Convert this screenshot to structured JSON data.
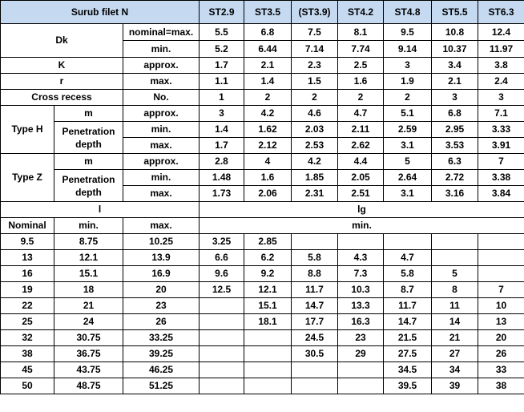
{
  "header": {
    "title": "Surub filet N",
    "sizes": [
      "ST2.9",
      "ST3.5",
      "(ST3.9)",
      "ST4.2",
      "ST4.8",
      "ST5.5",
      "ST6.3"
    ]
  },
  "dims": {
    "dk": {
      "label": "Dk",
      "nominal": {
        "label": "nominal=max.",
        "values": [
          "5.5",
          "6.8",
          "7.5",
          "8.1",
          "9.5",
          "10.8",
          "12.4"
        ]
      },
      "min": {
        "label": "min.",
        "values": [
          "5.2",
          "6.44",
          "7.14",
          "7.74",
          "9.14",
          "10.37",
          "11.97"
        ]
      }
    },
    "k": {
      "label": "K",
      "spec": "approx.",
      "values": [
        "1.7",
        "2.1",
        "2.3",
        "2.5",
        "3",
        "3.4",
        "3.8"
      ]
    },
    "r": {
      "label": "r",
      "spec": "max.",
      "values": [
        "1.1",
        "1.4",
        "1.5",
        "1.6",
        "1.9",
        "2.1",
        "2.4"
      ]
    },
    "cross": {
      "label": "Cross recess",
      "spec": "No.",
      "values": [
        "1",
        "2",
        "2",
        "2",
        "2",
        "3",
        "3"
      ]
    },
    "type_h": {
      "label": "Type H",
      "m": {
        "label": "m",
        "spec": "approx.",
        "values": [
          "3",
          "4.2",
          "4.6",
          "4.7",
          "5.1",
          "6.8",
          "7.1"
        ]
      },
      "pen_label": "Penetration depth",
      "pen_min": {
        "spec": "min.",
        "values": [
          "1.4",
          "1.62",
          "2.03",
          "2.11",
          "2.59",
          "2.95",
          "3.33"
        ]
      },
      "pen_max": {
        "spec": "max.",
        "values": [
          "1.7",
          "2.12",
          "2.53",
          "2.62",
          "3.1",
          "3.53",
          "3.91"
        ]
      }
    },
    "type_z": {
      "label": "Type Z",
      "m": {
        "label": "m",
        "spec": "approx.",
        "values": [
          "2.8",
          "4",
          "4.2",
          "4.4",
          "5",
          "6.3",
          "7"
        ]
      },
      "pen_label": "Penetration depth",
      "pen_min": {
        "spec": "min.",
        "values": [
          "1.48",
          "1.6",
          "1.85",
          "2.05",
          "2.64",
          "2.72",
          "3.38"
        ]
      },
      "pen_max": {
        "spec": "max.",
        "values": [
          "1.73",
          "2.06",
          "2.31",
          "2.51",
          "3.1",
          "3.16",
          "3.84"
        ]
      }
    }
  },
  "length": {
    "l_label": "l",
    "lg_label": "lg",
    "nominal_label": "Nominal",
    "min_label": "min.",
    "max_label": "max.",
    "lg_min_label": "min.",
    "rows": [
      {
        "nominal": "9.5",
        "min": "8.75",
        "max": "10.25",
        "lg": [
          "3.25",
          "2.85",
          "",
          "",
          "",
          "",
          ""
        ]
      },
      {
        "nominal": "13",
        "min": "12.1",
        "max": "13.9",
        "lg": [
          "6.6",
          "6.2",
          "5.8",
          "4.3",
          "4.7",
          "",
          ""
        ]
      },
      {
        "nominal": "16",
        "min": "15.1",
        "max": "16.9",
        "lg": [
          "9.6",
          "9.2",
          "8.8",
          "7.3",
          "5.8",
          "5",
          ""
        ]
      },
      {
        "nominal": "19",
        "min": "18",
        "max": "20",
        "lg": [
          "12.5",
          "12.1",
          "11.7",
          "10.3",
          "8.7",
          "8",
          "7"
        ]
      },
      {
        "nominal": "22",
        "min": "21",
        "max": "23",
        "lg": [
          "",
          "15.1",
          "14.7",
          "13.3",
          "11.7",
          "11",
          "10"
        ]
      },
      {
        "nominal": "25",
        "min": "24",
        "max": "26",
        "lg": [
          "",
          "18.1",
          "17.7",
          "16.3",
          "14.7",
          "14",
          "13"
        ]
      },
      {
        "nominal": "32",
        "min": "30.75",
        "max": "33.25",
        "lg": [
          "",
          "",
          "24.5",
          "23",
          "21.5",
          "21",
          "20"
        ]
      },
      {
        "nominal": "38",
        "min": "36.75",
        "max": "39.25",
        "lg": [
          "",
          "",
          "30.5",
          "29",
          "27.5",
          "27",
          "26"
        ]
      },
      {
        "nominal": "45",
        "min": "43.75",
        "max": "46.25",
        "lg": [
          "",
          "",
          "",
          "",
          "34.5",
          "34",
          "33"
        ]
      },
      {
        "nominal": "50",
        "min": "48.75",
        "max": "51.25",
        "lg": [
          "",
          "",
          "",
          "",
          "39.5",
          "39",
          "38"
        ]
      }
    ]
  },
  "colors": {
    "header_bg": "#c5d9f1",
    "border": "#000000",
    "text": "#000000"
  }
}
